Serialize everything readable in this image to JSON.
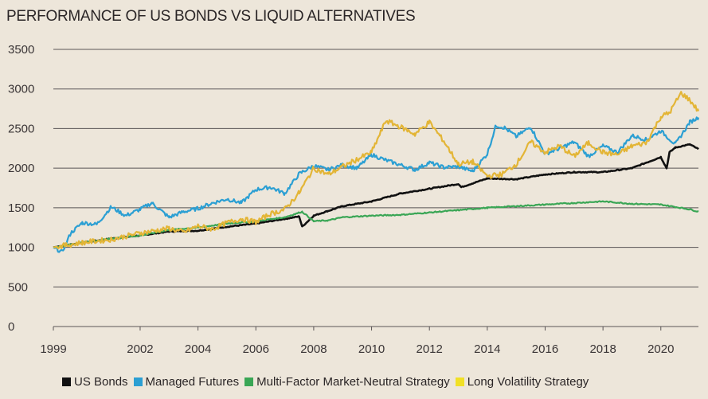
{
  "chart_data": {
    "type": "line",
    "title": "PERFORMANCE OF US BONDS VS LIQUID ALTERNATIVES",
    "xlabel": "",
    "ylabel": "",
    "xlim": [
      1999,
      2021.3
    ],
    "ylim": [
      0,
      3500
    ],
    "yticks": [
      0,
      500,
      1000,
      1500,
      2000,
      2500,
      3000,
      3500
    ],
    "ytick_labels": [
      "0",
      "500",
      "1000",
      "1500",
      "2000",
      "2500",
      "3000",
      "3500"
    ],
    "xticks": [
      1999,
      2002,
      2004,
      2006,
      2008,
      2010,
      2012,
      2014,
      2016,
      2018,
      2020
    ],
    "xtick_labels": [
      "1999",
      "2002",
      "2004",
      "2006",
      "2008",
      "2010",
      "2012",
      "2014",
      "2016",
      "2018",
      "2020"
    ],
    "legend_position": "bottom",
    "series": [
      {
        "name": "US Bonds",
        "color": "#111111",
        "x": [
          1999,
          2000,
          2001,
          2002,
          2003,
          2004,
          2005,
          2006,
          2007,
          2007.5,
          2007.6,
          2008,
          2008.5,
          2009,
          2010,
          2011,
          2012,
          2013,
          2013.1,
          2014,
          2015,
          2016,
          2017,
          2018,
          2019,
          2020,
          2020.2,
          2020.3,
          2020.5,
          2021,
          2021.3
        ],
        "values": [
          1000,
          1060,
          1110,
          1150,
          1200,
          1210,
          1260,
          1300,
          1360,
          1390,
          1260,
          1400,
          1460,
          1520,
          1580,
          1680,
          1740,
          1800,
          1760,
          1870,
          1860,
          1920,
          1950,
          1950,
          2000,
          2140,
          2000,
          2200,
          2260,
          2300,
          2240
        ]
      },
      {
        "name": "Managed Futures",
        "color": "#2b9fd3",
        "x": [
          1999,
          1999.3,
          1999.6,
          2000,
          2000.5,
          2001,
          2001.5,
          2002,
          2002.4,
          2003,
          2003.5,
          2004,
          2004.5,
          2005,
          2005.5,
          2006,
          2006.5,
          2007,
          2007.5,
          2008,
          2008.5,
          2009,
          2009.5,
          2010,
          2010.5,
          2011,
          2011.5,
          2012,
          2012.5,
          2013,
          2013.5,
          2014,
          2014.3,
          2014.6,
          2015,
          2015.5,
          2016,
          2016.5,
          2017,
          2017.5,
          2018,
          2018.5,
          2019,
          2019.5,
          2020,
          2020.5,
          2021,
          2021.3
        ],
        "values": [
          1000,
          940,
          1180,
          1310,
          1290,
          1510,
          1400,
          1480,
          1560,
          1380,
          1450,
          1490,
          1560,
          1610,
          1560,
          1730,
          1760,
          1680,
          1930,
          2030,
          1980,
          2040,
          2000,
          2170,
          2100,
          2040,
          1980,
          2070,
          2010,
          2020,
          1960,
          2180,
          2540,
          2510,
          2400,
          2520,
          2180,
          2250,
          2330,
          2150,
          2280,
          2200,
          2410,
          2360,
          2470,
          2300,
          2580,
          2640
        ]
      },
      {
        "name": "Multi-Factor Market-Neutral Strategy",
        "color": "#3aa655",
        "x": [
          1999,
          2000,
          2001,
          2002,
          2003,
          2004,
          2005,
          2006,
          2007,
          2007.6,
          2008,
          2008.5,
          2009,
          2010,
          2011,
          2012,
          2013,
          2014,
          2015,
          2016,
          2017,
          2018,
          2019,
          2020,
          2020.5,
          2021,
          2021.3
        ],
        "values": [
          1000,
          1060,
          1110,
          1150,
          1220,
          1250,
          1300,
          1330,
          1380,
          1450,
          1330,
          1340,
          1380,
          1400,
          1410,
          1440,
          1470,
          1500,
          1520,
          1540,
          1560,
          1580,
          1550,
          1540,
          1510,
          1480,
          1450
        ]
      },
      {
        "name": "Long Volatility Strategy",
        "color": "#e3b536",
        "x": [
          1999,
          2000,
          2001,
          2002,
          2003,
          2003.5,
          2004,
          2004.5,
          2005,
          2005.5,
          2006,
          2006.5,
          2007,
          2007.5,
          2008,
          2008.5,
          2009,
          2009.5,
          2010,
          2010.5,
          2011,
          2011.5,
          2012,
          2012.5,
          2013,
          2013.5,
          2014,
          2014.5,
          2015,
          2015.5,
          2016,
          2016.5,
          2017,
          2017.5,
          2018,
          2018.5,
          2019,
          2019.5,
          2020,
          2020.3,
          2020.7,
          2021,
          2021.3
        ],
        "values": [
          1000,
          1060,
          1100,
          1180,
          1240,
          1190,
          1270,
          1230,
          1310,
          1360,
          1320,
          1420,
          1480,
          1690,
          2000,
          1920,
          2020,
          2110,
          2200,
          2600,
          2520,
          2430,
          2580,
          2340,
          2050,
          2080,
          1900,
          1920,
          2050,
          2330,
          2200,
          2280,
          2150,
          2320,
          2200,
          2170,
          2280,
          2320,
          2650,
          2700,
          2950,
          2860,
          2720
        ]
      }
    ]
  }
}
